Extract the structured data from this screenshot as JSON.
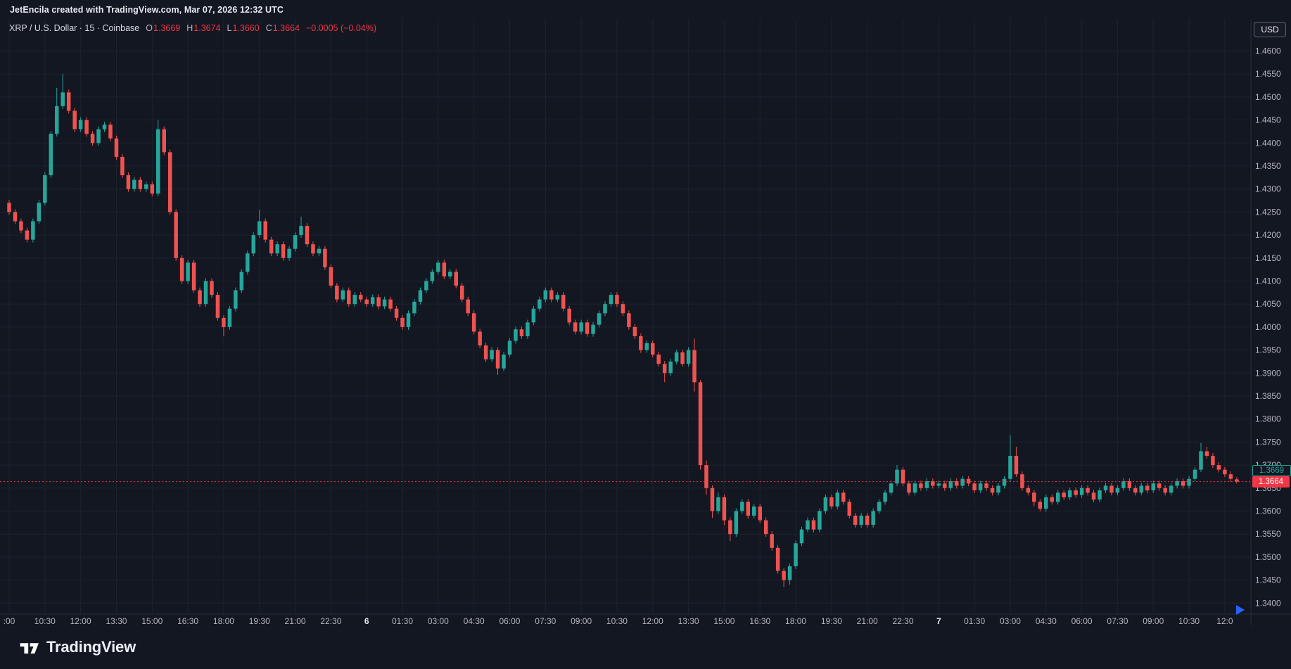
{
  "attribution": {
    "text": "JetEncila created with TradingView.com, Mar 07, 2026 12:32 UTC"
  },
  "legend": {
    "title": "XRP / U.S. Dollar · 15 · Coinbase",
    "ohlc": [
      {
        "k": "O",
        "v": "1.3669"
      },
      {
        "k": "H",
        "v": "1.3674"
      },
      {
        "k": "L",
        "v": "1.3660"
      },
      {
        "k": "C",
        "v": "1.3664"
      }
    ],
    "change": "−0.0005 (−0.04%)"
  },
  "currency_button": {
    "label": "USD"
  },
  "price_labels": {
    "current": "1.3664",
    "secondary": "1.3669"
  },
  "price_axis": {
    "labels": [
      "1.4600",
      "1.4550",
      "1.4500",
      "1.4450",
      "1.4400",
      "1.4350",
      "1.4300",
      "1.4250",
      "1.4200",
      "1.4150",
      "1.4100",
      "1.4050",
      "1.4000",
      "1.3950",
      "1.3900",
      "1.3850",
      "1.3800",
      "1.3750",
      "1.3700",
      "1.3650",
      "1.3600",
      "1.3550",
      "1.3500",
      "1.3450",
      "1.3400"
    ]
  },
  "footer": {
    "brand": "TradingView"
  },
  "chart_data": {
    "type": "candlestick",
    "symbol": "XRP/USD",
    "exchange": "Coinbase",
    "interval_minutes": 15,
    "up_color": "#26a69a",
    "down_color": "#ef5350",
    "accent_red": "#f23645",
    "realtime_arrow_color": "#2962ff",
    "y_axis": {
      "min": 1.34,
      "max": 1.46,
      "step": 0.005
    },
    "current_price": 1.3664,
    "time_labels": [
      {
        "label": ":00",
        "i": 0
      },
      {
        "label": "10:30",
        "i": 6
      },
      {
        "label": "12:00",
        "i": 12
      },
      {
        "label": "13:30",
        "i": 18
      },
      {
        "label": "15:00",
        "i": 24
      },
      {
        "label": "16:30",
        "i": 30
      },
      {
        "label": "18:00",
        "i": 36
      },
      {
        "label": "19:30",
        "i": 42
      },
      {
        "label": "21:00",
        "i": 48
      },
      {
        "label": "22:30",
        "i": 54
      },
      {
        "label": "6",
        "i": 60,
        "day": true
      },
      {
        "label": "01:30",
        "i": 66
      },
      {
        "label": "03:00",
        "i": 72
      },
      {
        "label": "04:30",
        "i": 78
      },
      {
        "label": "06:00",
        "i": 84
      },
      {
        "label": "07:30",
        "i": 90
      },
      {
        "label": "09:00",
        "i": 96
      },
      {
        "label": "10:30",
        "i": 102
      },
      {
        "label": "12:00",
        "i": 108
      },
      {
        "label": "13:30",
        "i": 114
      },
      {
        "label": "15:00",
        "i": 120
      },
      {
        "label": "16:30",
        "i": 126
      },
      {
        "label": "18:00",
        "i": 132
      },
      {
        "label": "19:30",
        "i": 138
      },
      {
        "label": "21:00",
        "i": 144
      },
      {
        "label": "22:30",
        "i": 150
      },
      {
        "label": "7",
        "i": 156,
        "day": true
      },
      {
        "label": "01:30",
        "i": 162
      },
      {
        "label": "03:00",
        "i": 168
      },
      {
        "label": "04:30",
        "i": 174
      },
      {
        "label": "06:00",
        "i": 180
      },
      {
        "label": "07:30",
        "i": 186
      },
      {
        "label": "09:00",
        "i": 192
      },
      {
        "label": "10:30",
        "i": 198
      },
      {
        "label": "12:0",
        "i": 204
      }
    ],
    "candles": [
      [
        1.427,
        1.4276,
        1.4244,
        1.425
      ],
      [
        1.425,
        1.4256,
        1.4224,
        1.423
      ],
      [
        1.423,
        1.4236,
        1.4204,
        1.421
      ],
      [
        1.421,
        1.4216,
        1.4184,
        1.419
      ],
      [
        1.419,
        1.4236,
        1.4184,
        1.423
      ],
      [
        1.423,
        1.4276,
        1.4224,
        1.427
      ],
      [
        1.427,
        1.4336,
        1.4264,
        1.433
      ],
      [
        1.433,
        1.4426,
        1.4324,
        1.442
      ],
      [
        1.442,
        1.452,
        1.4414,
        1.448
      ],
      [
        1.448,
        1.455,
        1.4474,
        1.451
      ],
      [
        1.451,
        1.4516,
        1.4464,
        1.447
      ],
      [
        1.447,
        1.4476,
        1.4424,
        1.443
      ],
      [
        1.443,
        1.4456,
        1.4424,
        1.445
      ],
      [
        1.445,
        1.4456,
        1.4414,
        1.442
      ],
      [
        1.442,
        1.4426,
        1.4394,
        1.44
      ],
      [
        1.44,
        1.4436,
        1.4394,
        1.443
      ],
      [
        1.443,
        1.4446,
        1.4424,
        1.444
      ],
      [
        1.444,
        1.4446,
        1.4404,
        1.441
      ],
      [
        1.441,
        1.4416,
        1.4364,
        1.437
      ],
      [
        1.437,
        1.4376,
        1.4324,
        1.433
      ],
      [
        1.433,
        1.4336,
        1.4294,
        1.43
      ],
      [
        1.43,
        1.4326,
        1.4294,
        1.432
      ],
      [
        1.432,
        1.4326,
        1.4294,
        1.43
      ],
      [
        1.43,
        1.4316,
        1.4294,
        1.431
      ],
      [
        1.431,
        1.4316,
        1.4284,
        1.429
      ],
      [
        1.429,
        1.445,
        1.4284,
        1.443
      ],
      [
        1.443,
        1.4436,
        1.4374,
        1.438
      ],
      [
        1.438,
        1.4386,
        1.4244,
        1.425
      ],
      [
        1.425,
        1.4256,
        1.4144,
        1.415
      ],
      [
        1.415,
        1.4156,
        1.4094,
        1.41
      ],
      [
        1.41,
        1.4146,
        1.4094,
        1.414
      ],
      [
        1.414,
        1.4146,
        1.4074,
        1.408
      ],
      [
        1.408,
        1.4086,
        1.4044,
        1.405
      ],
      [
        1.405,
        1.4106,
        1.4044,
        1.41
      ],
      [
        1.41,
        1.4106,
        1.4064,
        1.407
      ],
      [
        1.407,
        1.4076,
        1.4014,
        1.402
      ],
      [
        1.402,
        1.4026,
        1.398,
        1.4
      ],
      [
        1.4,
        1.4046,
        1.3994,
        1.404
      ],
      [
        1.404,
        1.4086,
        1.4034,
        1.408
      ],
      [
        1.408,
        1.4126,
        1.4074,
        1.412
      ],
      [
        1.412,
        1.4166,
        1.4114,
        1.416
      ],
      [
        1.416,
        1.4206,
        1.4154,
        1.42
      ],
      [
        1.42,
        1.4255,
        1.4194,
        1.423
      ],
      [
        1.423,
        1.4236,
        1.4184,
        1.419
      ],
      [
        1.419,
        1.4196,
        1.4154,
        1.416
      ],
      [
        1.416,
        1.4186,
        1.4154,
        1.418
      ],
      [
        1.418,
        1.4186,
        1.4144,
        1.415
      ],
      [
        1.415,
        1.4176,
        1.4144,
        1.417
      ],
      [
        1.417,
        1.4206,
        1.4164,
        1.42
      ],
      [
        1.42,
        1.424,
        1.4194,
        1.422
      ],
      [
        1.422,
        1.4226,
        1.4174,
        1.418
      ],
      [
        1.418,
        1.4186,
        1.4154,
        1.416
      ],
      [
        1.416,
        1.4176,
        1.4154,
        1.417
      ],
      [
        1.417,
        1.4176,
        1.4124,
        1.413
      ],
      [
        1.413,
        1.4136,
        1.4084,
        1.409
      ],
      [
        1.409,
        1.4096,
        1.4054,
        1.406
      ],
      [
        1.406,
        1.4086,
        1.4054,
        1.408
      ],
      [
        1.408,
        1.4086,
        1.4044,
        1.405
      ],
      [
        1.405,
        1.4076,
        1.4044,
        1.407
      ],
      [
        1.407,
        1.4076,
        1.4054,
        1.406
      ],
      [
        1.406,
        1.4066,
        1.4044,
        1.405
      ],
      [
        1.405,
        1.4071,
        1.4044,
        1.4065
      ],
      [
        1.4065,
        1.4071,
        1.4039,
        1.4045
      ],
      [
        1.4045,
        1.4066,
        1.4039,
        1.406
      ],
      [
        1.406,
        1.4066,
        1.4034,
        1.404
      ],
      [
        1.404,
        1.4046,
        1.4014,
        1.402
      ],
      [
        1.402,
        1.4026,
        1.3994,
        1.4
      ],
      [
        1.4,
        1.4036,
        1.3994,
        1.403
      ],
      [
        1.403,
        1.4061,
        1.4024,
        1.4055
      ],
      [
        1.4055,
        1.4086,
        1.4049,
        1.408
      ],
      [
        1.408,
        1.4106,
        1.4074,
        1.41
      ],
      [
        1.41,
        1.4126,
        1.4094,
        1.412
      ],
      [
        1.412,
        1.4146,
        1.4114,
        1.414
      ],
      [
        1.414,
        1.4146,
        1.4104,
        1.411
      ],
      [
        1.411,
        1.4126,
        1.4104,
        1.412
      ],
      [
        1.412,
        1.4126,
        1.4084,
        1.409
      ],
      [
        1.409,
        1.4096,
        1.4054,
        1.406
      ],
      [
        1.406,
        1.4066,
        1.4024,
        1.403
      ],
      [
        1.403,
        1.4036,
        1.3984,
        1.399
      ],
      [
        1.399,
        1.3996,
        1.3954,
        1.396
      ],
      [
        1.396,
        1.3966,
        1.3924,
        1.393
      ],
      [
        1.393,
        1.3956,
        1.3924,
        1.395
      ],
      [
        1.395,
        1.3956,
        1.3896,
        1.391
      ],
      [
        1.391,
        1.3946,
        1.3904,
        1.394
      ],
      [
        1.394,
        1.3976,
        1.3934,
        1.397
      ],
      [
        1.397,
        1.4001,
        1.3964,
        1.3995
      ],
      [
        1.3995,
        1.4001,
        1.3974,
        1.398
      ],
      [
        1.398,
        1.4016,
        1.3974,
        1.401
      ],
      [
        1.401,
        1.4046,
        1.4004,
        1.404
      ],
      [
        1.404,
        1.4066,
        1.4034,
        1.406
      ],
      [
        1.406,
        1.4086,
        1.4054,
        1.408
      ],
      [
        1.408,
        1.4086,
        1.4054,
        1.406
      ],
      [
        1.406,
        1.4076,
        1.4054,
        1.407
      ],
      [
        1.407,
        1.4076,
        1.4034,
        1.404
      ],
      [
        1.404,
        1.4046,
        1.4004,
        1.401
      ],
      [
        1.401,
        1.4016,
        1.3984,
        1.399
      ],
      [
        1.399,
        1.4016,
        1.3984,
        1.401
      ],
      [
        1.401,
        1.4016,
        1.3979,
        1.3985
      ],
      [
        1.3985,
        1.4011,
        1.3979,
        1.4005
      ],
      [
        1.4005,
        1.4036,
        1.3999,
        1.403
      ],
      [
        1.403,
        1.4056,
        1.4024,
        1.405
      ],
      [
        1.405,
        1.4076,
        1.4044,
        1.407
      ],
      [
        1.407,
        1.4076,
        1.4044,
        1.405
      ],
      [
        1.405,
        1.4056,
        1.4024,
        1.403
      ],
      [
        1.403,
        1.4036,
        1.3994,
        1.4
      ],
      [
        1.4,
        1.4006,
        1.3974,
        1.398
      ],
      [
        1.398,
        1.3986,
        1.3944,
        1.395
      ],
      [
        1.395,
        1.3971,
        1.3944,
        1.3965
      ],
      [
        1.3965,
        1.3971,
        1.3934,
        1.394
      ],
      [
        1.394,
        1.3946,
        1.3914,
        1.392
      ],
      [
        1.392,
        1.3926,
        1.388,
        1.39
      ],
      [
        1.39,
        1.3931,
        1.3894,
        1.3925
      ],
      [
        1.3925,
        1.3951,
        1.3919,
        1.3945
      ],
      [
        1.3945,
        1.3951,
        1.3914,
        1.392
      ],
      [
        1.392,
        1.3956,
        1.3914,
        1.395
      ],
      [
        1.395,
        1.3975,
        1.386,
        1.388
      ],
      [
        1.388,
        1.3885,
        1.369,
        1.37
      ],
      [
        1.37,
        1.371,
        1.3635,
        1.365
      ],
      [
        1.365,
        1.3656,
        1.3585,
        1.36
      ],
      [
        1.36,
        1.364,
        1.3594,
        1.363
      ],
      [
        1.363,
        1.3636,
        1.357,
        1.358
      ],
      [
        1.358,
        1.3586,
        1.3535,
        1.355
      ],
      [
        1.355,
        1.3606,
        1.3544,
        1.36
      ],
      [
        1.36,
        1.3626,
        1.3594,
        1.362
      ],
      [
        1.362,
        1.3626,
        1.3584,
        1.359
      ],
      [
        1.359,
        1.3616,
        1.3584,
        1.361
      ],
      [
        1.361,
        1.3616,
        1.3574,
        1.358
      ],
      [
        1.358,
        1.3586,
        1.3544,
        1.355
      ],
      [
        1.355,
        1.3556,
        1.3514,
        1.352
      ],
      [
        1.352,
        1.3526,
        1.3464,
        1.347
      ],
      [
        1.347,
        1.3476,
        1.3435,
        1.345
      ],
      [
        1.345,
        1.3486,
        1.344,
        1.348
      ],
      [
        1.348,
        1.3536,
        1.3474,
        1.353
      ],
      [
        1.353,
        1.3566,
        1.3524,
        1.356
      ],
      [
        1.356,
        1.3586,
        1.3554,
        1.358
      ],
      [
        1.358,
        1.3586,
        1.3554,
        1.356
      ],
      [
        1.356,
        1.3606,
        1.3554,
        1.36
      ],
      [
        1.36,
        1.3636,
        1.3594,
        1.363
      ],
      [
        1.363,
        1.3636,
        1.3604,
        1.361
      ],
      [
        1.361,
        1.3646,
        1.3604,
        1.364
      ],
      [
        1.364,
        1.3646,
        1.3614,
        1.362
      ],
      [
        1.362,
        1.3626,
        1.3584,
        1.359
      ],
      [
        1.359,
        1.3596,
        1.3564,
        1.357
      ],
      [
        1.357,
        1.3596,
        1.3564,
        1.359
      ],
      [
        1.359,
        1.3596,
        1.3564,
        1.357
      ],
      [
        1.357,
        1.3606,
        1.3564,
        1.36
      ],
      [
        1.36,
        1.3626,
        1.3594,
        1.362
      ],
      [
        1.362,
        1.3646,
        1.3614,
        1.364
      ],
      [
        1.364,
        1.3666,
        1.3634,
        1.366
      ],
      [
        1.366,
        1.37,
        1.3654,
        1.369
      ],
      [
        1.369,
        1.3696,
        1.3654,
        1.366
      ],
      [
        1.366,
        1.3666,
        1.3634,
        1.364
      ],
      [
        1.364,
        1.3666,
        1.3634,
        1.366
      ],
      [
        1.366,
        1.3666,
        1.3644,
        1.365
      ],
      [
        1.365,
        1.3671,
        1.3644,
        1.3665
      ],
      [
        1.3665,
        1.3671,
        1.3649,
        1.3655
      ],
      [
        1.3655,
        1.3666,
        1.3649,
        1.366
      ],
      [
        1.366,
        1.3666,
        1.3644,
        1.365
      ],
      [
        1.365,
        1.3671,
        1.3644,
        1.3665
      ],
      [
        1.3665,
        1.3671,
        1.3649,
        1.3655
      ],
      [
        1.3655,
        1.3676,
        1.3649,
        1.367
      ],
      [
        1.367,
        1.3676,
        1.3654,
        1.366
      ],
      [
        1.366,
        1.3666,
        1.3639,
        1.3645
      ],
      [
        1.3645,
        1.3666,
        1.3639,
        1.366
      ],
      [
        1.366,
        1.3666,
        1.3644,
        1.365
      ],
      [
        1.365,
        1.3656,
        1.3634,
        1.364
      ],
      [
        1.364,
        1.3661,
        1.3634,
        1.3655
      ],
      [
        1.3655,
        1.3676,
        1.3649,
        1.367
      ],
      [
        1.367,
        1.3765,
        1.3665,
        1.372
      ],
      [
        1.372,
        1.374,
        1.3674,
        1.368
      ],
      [
        1.368,
        1.3686,
        1.3644,
        1.365
      ],
      [
        1.365,
        1.3656,
        1.3634,
        1.364
      ],
      [
        1.364,
        1.3646,
        1.361,
        1.362
      ],
      [
        1.362,
        1.3626,
        1.3599,
        1.3605
      ],
      [
        1.3605,
        1.3636,
        1.3599,
        1.363
      ],
      [
        1.363,
        1.3636,
        1.3614,
        1.362
      ],
      [
        1.362,
        1.3646,
        1.3614,
        1.364
      ],
      [
        1.364,
        1.3646,
        1.3624,
        1.363
      ],
      [
        1.363,
        1.3651,
        1.3624,
        1.3645
      ],
      [
        1.3645,
        1.3651,
        1.3629,
        1.3635
      ],
      [
        1.3635,
        1.3656,
        1.3629,
        1.365
      ],
      [
        1.365,
        1.3656,
        1.3634,
        1.364
      ],
      [
        1.364,
        1.3646,
        1.3619,
        1.3625
      ],
      [
        1.3625,
        1.3651,
        1.3619,
        1.3645
      ],
      [
        1.3645,
        1.3661,
        1.3639,
        1.3655
      ],
      [
        1.3655,
        1.3661,
        1.3634,
        1.364
      ],
      [
        1.364,
        1.3656,
        1.3634,
        1.365
      ],
      [
        1.365,
        1.3671,
        1.3644,
        1.3665
      ],
      [
        1.3665,
        1.3671,
        1.3644,
        1.365
      ],
      [
        1.365,
        1.3656,
        1.3634,
        1.364
      ],
      [
        1.364,
        1.3661,
        1.3634,
        1.3655
      ],
      [
        1.3655,
        1.3661,
        1.3639,
        1.3645
      ],
      [
        1.3645,
        1.3666,
        1.3639,
        1.366
      ],
      [
        1.366,
        1.3666,
        1.3644,
        1.365
      ],
      [
        1.365,
        1.3656,
        1.3634,
        1.364
      ],
      [
        1.364,
        1.3661,
        1.3634,
        1.3655
      ],
      [
        1.3655,
        1.3671,
        1.3649,
        1.3665
      ],
      [
        1.3665,
        1.3671,
        1.3649,
        1.3655
      ],
      [
        1.3655,
        1.3676,
        1.3649,
        1.367
      ],
      [
        1.367,
        1.3696,
        1.3664,
        1.369
      ],
      [
        1.369,
        1.3748,
        1.3685,
        1.373
      ],
      [
        1.373,
        1.374,
        1.3714,
        1.372
      ],
      [
        1.372,
        1.3726,
        1.3694,
        1.37
      ],
      [
        1.37,
        1.3706,
        1.3684,
        1.369
      ],
      [
        1.369,
        1.3696,
        1.3674,
        1.368
      ],
      [
        1.368,
        1.3686,
        1.3664,
        1.367
      ],
      [
        1.3669,
        1.3674,
        1.366,
        1.3664
      ]
    ]
  }
}
